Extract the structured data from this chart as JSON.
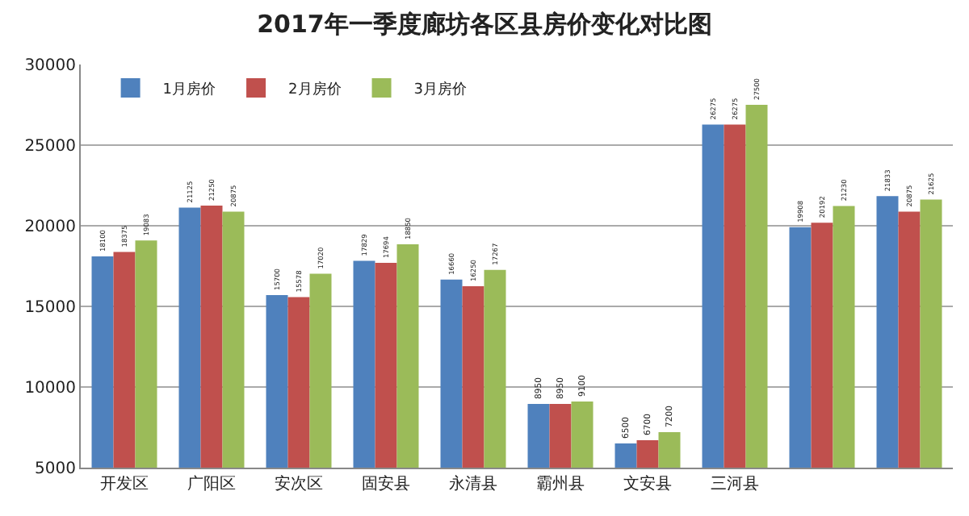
{
  "chart_data": {
    "type": "bar",
    "title": "2017年一季度廊坊各区县房价变化对比图",
    "categories": [
      "开发区",
      "广阳区",
      "安次区",
      "固安县",
      "永清县",
      "霸州县",
      "文安县",
      "三河县",
      null,
      null
    ],
    "series": [
      {
        "name": "1月房价",
        "color": "#4f81bd",
        "values": [
          18100,
          21125,
          15700,
          17829,
          16660,
          8950,
          6500,
          26275,
          19908,
          21833
        ]
      },
      {
        "name": "2月房价",
        "color": "#c0504d",
        "values": [
          18375,
          21250,
          15578,
          17694,
          16250,
          8950,
          6700,
          26275,
          20192,
          20875
        ]
      },
      {
        "name": "3月房价",
        "color": "#9bbb59",
        "values": [
          19083,
          20875,
          17020,
          18850,
          17267,
          9100,
          7200,
          27500,
          21230,
          21625
        ]
      }
    ],
    "ylim": [
      5000,
      30000
    ],
    "yticks": [
      5000,
      10000,
      15000,
      20000,
      25000,
      30000
    ],
    "grid": "y",
    "legend": "top left",
    "data_labels": true
  }
}
